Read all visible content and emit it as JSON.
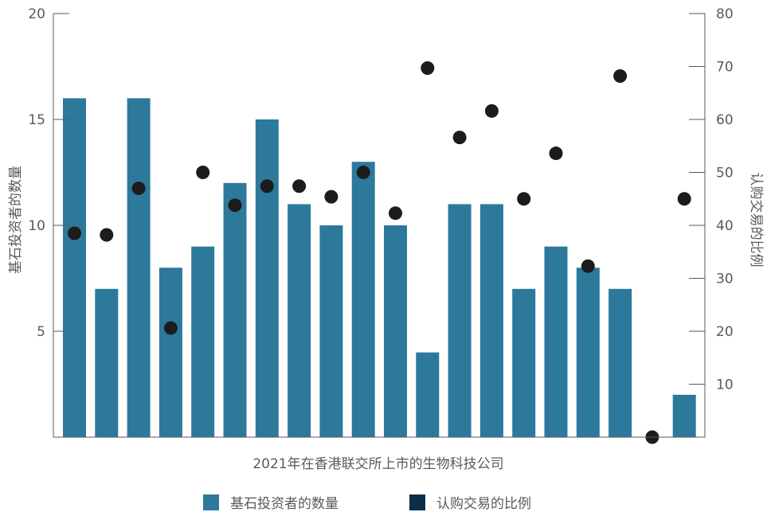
{
  "chart_data": {
    "type": "bar",
    "xlabel": "2021年在香港联交所上市的生物科技公司",
    "ylabel_left": "基石投资者的数量",
    "ylabel_right": "认购交易的比例",
    "left_ylim": [
      0,
      20
    ],
    "left_yticks": [
      5,
      10,
      15,
      20
    ],
    "right_ylim": [
      0,
      80
    ],
    "right_yticks": [
      10,
      20,
      30,
      40,
      50,
      60,
      70,
      80
    ],
    "grid": false,
    "legend_position": "bottom",
    "series": [
      {
        "name": "基石投资者的数量",
        "kind": "bar",
        "axis": "left",
        "color": "#2d799c",
        "values": [
          16,
          7,
          16,
          8,
          9,
          12,
          15,
          11,
          10,
          13,
          10,
          4,
          11,
          11,
          7,
          9,
          8,
          7,
          0,
          2
        ]
      },
      {
        "name": "认购交易的比例",
        "kind": "scatter",
        "axis": "right",
        "color": "#1c1c1c",
        "legend_color": "#0b2e4a",
        "values": [
          38.5,
          38.2,
          47,
          20.6,
          50,
          43.8,
          47.4,
          47.4,
          45.4,
          50,
          42.3,
          69.7,
          56.6,
          61.6,
          45,
          53.6,
          32.3,
          68.2,
          0,
          45
        ]
      }
    ]
  }
}
